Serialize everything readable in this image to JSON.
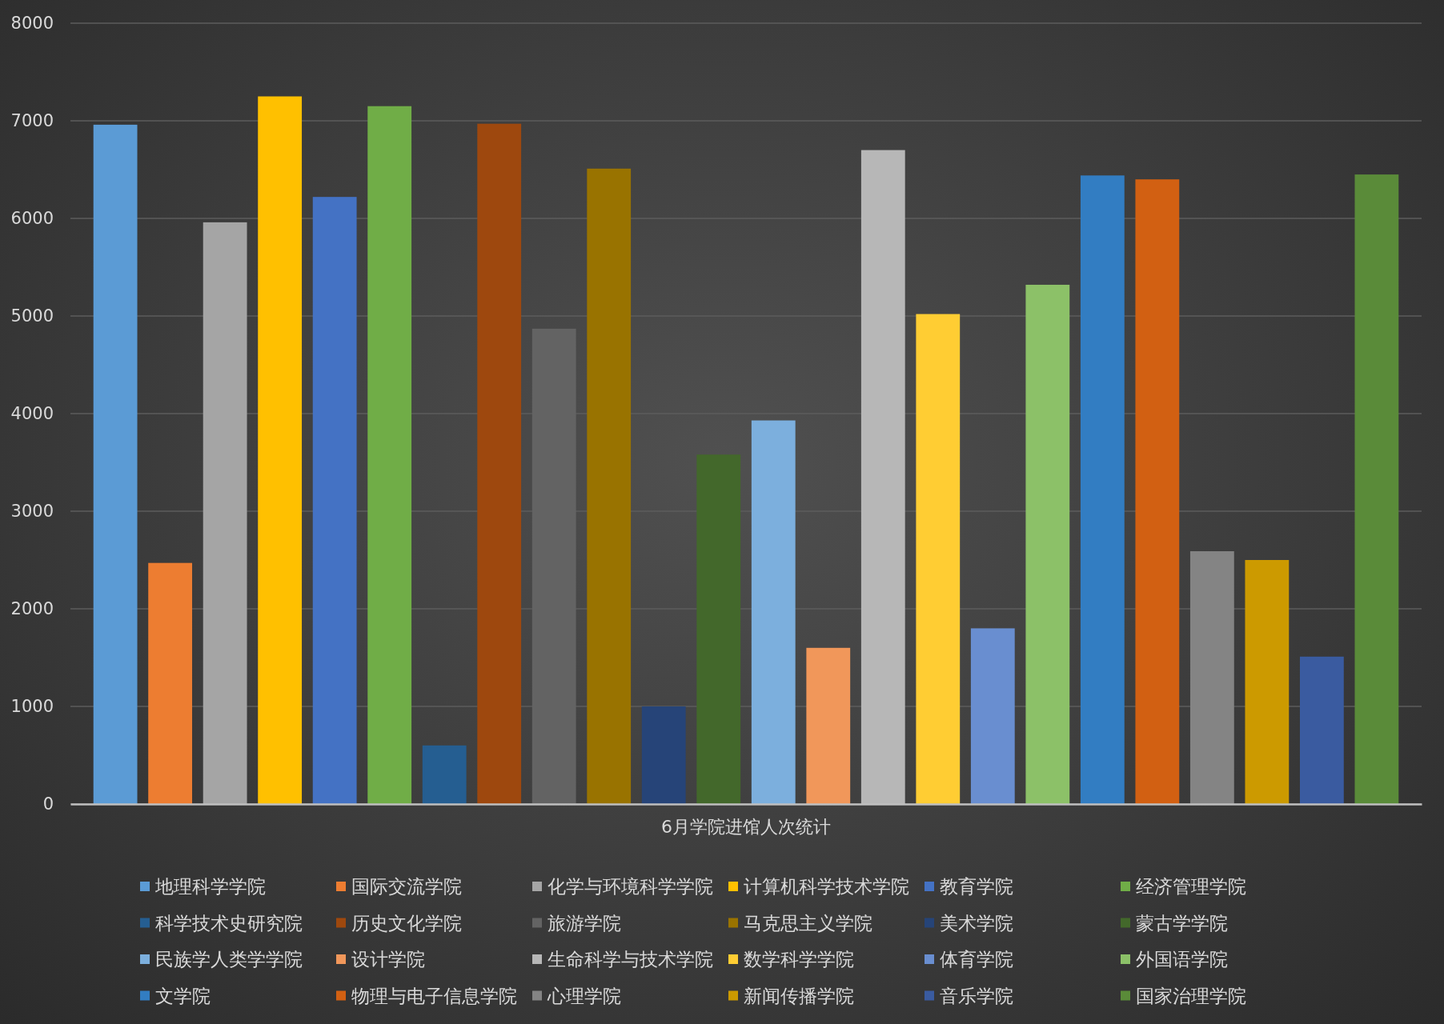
{
  "chart_data": {
    "type": "bar",
    "categories": [
      "6月学院进馆人次统计"
    ],
    "series": [
      {
        "name": "地理科学学院",
        "color": "#5b9bd5",
        "values": [
          6960
        ]
      },
      {
        "name": "国际交流学院",
        "color": "#ed7d31",
        "values": [
          2470
        ]
      },
      {
        "name": "化学与环境科学学院",
        "color": "#a5a5a5",
        "values": [
          5960
        ]
      },
      {
        "name": "计算机科学技术学院",
        "color": "#ffc000",
        "values": [
          7250
        ]
      },
      {
        "name": "教育学院",
        "color": "#4472c4",
        "values": [
          6220
        ]
      },
      {
        "name": "经济管理学院",
        "color": "#70ad47",
        "values": [
          7150
        ]
      },
      {
        "name": "科学技术史研究院",
        "color": "#255e91",
        "values": [
          600
        ]
      },
      {
        "name": "历史文化学院",
        "color": "#9e480e",
        "values": [
          6970
        ]
      },
      {
        "name": "旅游学院",
        "color": "#636363",
        "values": [
          4870
        ]
      },
      {
        "name": "马克思主义学院",
        "color": "#997300",
        "values": [
          6510
        ]
      },
      {
        "name": "美术学院",
        "color": "#264478",
        "values": [
          1000
        ]
      },
      {
        "name": "蒙古学学院",
        "color": "#43682b",
        "values": [
          3580
        ]
      },
      {
        "name": "民族学人类学学院",
        "color": "#7cafdd",
        "values": [
          3930
        ]
      },
      {
        "name": "设计学院",
        "color": "#f1975a",
        "values": [
          1600
        ]
      },
      {
        "name": "生命科学与技术学院",
        "color": "#b7b7b7",
        "values": [
          6700
        ]
      },
      {
        "name": "数学科学学院",
        "color": "#ffcd33",
        "values": [
          5020
        ]
      },
      {
        "name": "体育学院",
        "color": "#698ed0",
        "values": [
          1800
        ]
      },
      {
        "name": "外国语学院",
        "color": "#8cc168",
        "values": [
          5320
        ]
      },
      {
        "name": "文学院",
        "color": "#327dc2",
        "values": [
          6440
        ]
      },
      {
        "name": "物理与电子信息学院",
        "color": "#d26012",
        "values": [
          6400
        ]
      },
      {
        "name": "心理学院",
        "color": "#848484",
        "values": [
          2590
        ]
      },
      {
        "name": "新闻传播学院",
        "color": "#cc9a00",
        "values": [
          2500
        ]
      },
      {
        "name": "音乐学院",
        "color": "#3a5ba0",
        "values": [
          1510
        ]
      },
      {
        "name": "国家治理学院",
        "color": "#5a8b39",
        "values": [
          6450
        ]
      }
    ],
    "ylim": [
      0,
      8000
    ],
    "yticks": [
      0,
      1000,
      2000,
      3000,
      4000,
      5000,
      6000,
      7000,
      8000
    ],
    "grid": "y",
    "legend": "bottom"
  }
}
